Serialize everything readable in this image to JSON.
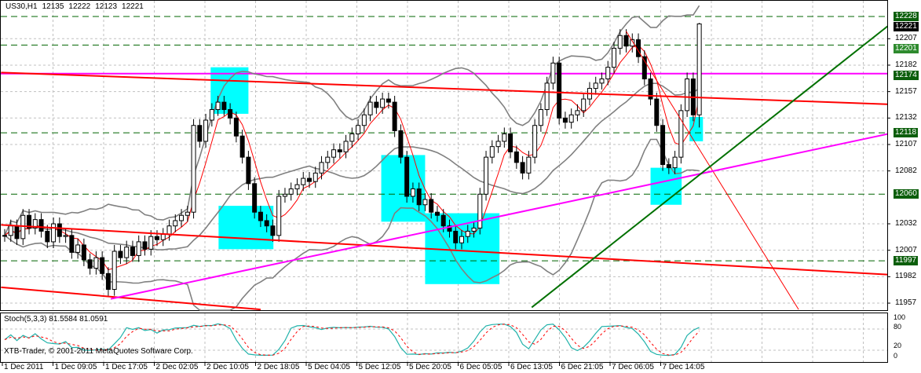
{
  "header": {
    "symbol": "US30,H1",
    "open": "12135",
    "high": "12222",
    "low": "12123",
    "close": "12221"
  },
  "indicator": {
    "label": "Stoch(5,3,3) 81.5584 81.0591"
  },
  "copyright": "XTB-Trader, © 2001-2011 MetaQuotes Software Corp.",
  "colors": {
    "bull_body": "#FFFFFF",
    "bear_body": "#000000",
    "grid": "#C0C0C0",
    "level_line": "#006400",
    "bollinger": "#808080",
    "ma": "#FF0000",
    "stoch_main": "#20B2AA",
    "stoch_signal": "#FF0000",
    "rect": "#00FFFF",
    "price_box": "#006400",
    "current_box": "#000000"
  },
  "chart_data": {
    "type": "candlestick",
    "timeframe": "H1",
    "close": [
      12021,
      12030,
      12018,
      12040,
      12028,
      12036,
      12025,
      12015,
      12032,
      12020,
      12021,
      12005,
      12012,
      11998,
      11990,
      12000,
      11985,
      11970,
      12006,
      12000,
      12010,
      12002,
      12015,
      12008,
      12020,
      12017,
      12022,
      12030,
      12035,
      12040,
      12043,
      12125,
      12110,
      12130,
      12140,
      12147,
      12140,
      12132,
      12115,
      12095,
      12070,
      12043,
      12035,
      12030,
      12021,
      12058,
      12060,
      12065,
      12069,
      12075,
      12072,
      12080,
      12090,
      12095,
      12102,
      12100,
      12110,
      12117,
      12125,
      12135,
      12147,
      12142,
      12150,
      12147,
      12120,
      12095,
      12058,
      12065,
      12050,
      12055,
      12043,
      12040,
      12030,
      12025,
      12014,
      12020,
      12025,
      12028,
      12060,
      12095,
      12105,
      12110,
      12117,
      12100,
      12090,
      12080,
      12095,
      12125,
      12140,
      12165,
      12184,
      12132,
      12128,
      12135,
      12139,
      12150,
      12160,
      12165,
      12169,
      12180,
      12198,
      12210,
      12200,
      12206,
      12190,
      12169,
      12150,
      12125,
      12088,
      12085,
      12095,
      12139,
      12169,
      12135,
      12221
    ],
    "last_bar": {
      "open": 12135,
      "high": 12222,
      "low": 12123,
      "close": 12221
    },
    "price_ticks": [
      12207,
      12182,
      12157,
      12132,
      12107,
      12082,
      12032,
      12007,
      11982,
      11957
    ],
    "price_range": [
      11951,
      12242
    ],
    "price_boxes": [
      {
        "price": "12228",
        "color": "#0B5E0B"
      },
      {
        "price": "12221",
        "color": "#000000"
      },
      {
        "price": "12201",
        "color": "#2E8B2E"
      },
      {
        "price": "12174",
        "color": "#0B5E0B"
      },
      {
        "price": "12118",
        "color": "#0B5E0B"
      },
      {
        "price": "12060",
        "color": "#0B5E0B"
      },
      {
        "price": "11997",
        "color": "#0B5E0B"
      }
    ],
    "dashed_levels": [
      12228,
      12201,
      12118,
      12060,
      11997
    ],
    "horizontal_lines": [
      {
        "price": 12174,
        "color": "#FF00FF"
      }
    ],
    "trend_lines": [
      {
        "from": [
          -0.6,
          12175
        ],
        "to": [
          145,
          12145
        ],
        "color": "#FF0000",
        "width": 2
      },
      {
        "from": [
          -0.6,
          12031
        ],
        "to": [
          145,
          11984
        ],
        "color": "#FF0000",
        "width": 2
      },
      {
        "from": [
          -0.6,
          11972
        ],
        "to": [
          42,
          11951
        ],
        "color": "#FF0000",
        "width": 2
      },
      {
        "from": [
          102,
          12214
        ],
        "to": [
          130.3,
          11951
        ],
        "color": "#FF0000",
        "width": 1
      },
      {
        "from": [
          17.4,
          11961
        ],
        "to": [
          145,
          12117
        ],
        "color": "#FF00FF",
        "width": 2
      },
      {
        "from": [
          86.5,
          11953
        ],
        "to": [
          150,
          12242
        ],
        "color": "#007000",
        "width": 2
      }
    ],
    "rectangles": [
      {
        "from": [
          33.8,
          12180
        ],
        "to": [
          40,
          12136
        ]
      },
      {
        "from": [
          35.1,
          12049
        ],
        "to": [
          44.1,
          12008
        ]
      },
      {
        "from": [
          61.8,
          12097
        ],
        "to": [
          69,
          12034
        ]
      },
      {
        "from": [
          69,
          12042
        ],
        "to": [
          81.2,
          11975
        ]
      },
      {
        "from": [
          106,
          12085
        ],
        "to": [
          111.1,
          12050
        ]
      },
      {
        "from": [
          112.4,
          12133
        ],
        "to": [
          114.6,
          12110
        ]
      }
    ],
    "time_labels": [
      "1 Dec 2011",
      "1 Dec 09:05",
      "1 Dec 17:05",
      "2 Dec 02:05",
      "2 Dec 10:05",
      "2 Dec 18:05",
      "5 Dec 04:05",
      "5 Dec 12:05",
      "5 Dec 20:05",
      "6 Dec 05:05",
      "6 Dec 13:05",
      "6 Dec 21:05",
      "7 Dec 06:05",
      "7 Dec 14:05"
    ],
    "stoch": {
      "k": 5,
      "d": 3,
      "slowing": 3,
      "main_last": 81.5584,
      "signal_last": 81.0591,
      "levels": [
        "100",
        "80",
        "20",
        "0"
      ]
    }
  }
}
